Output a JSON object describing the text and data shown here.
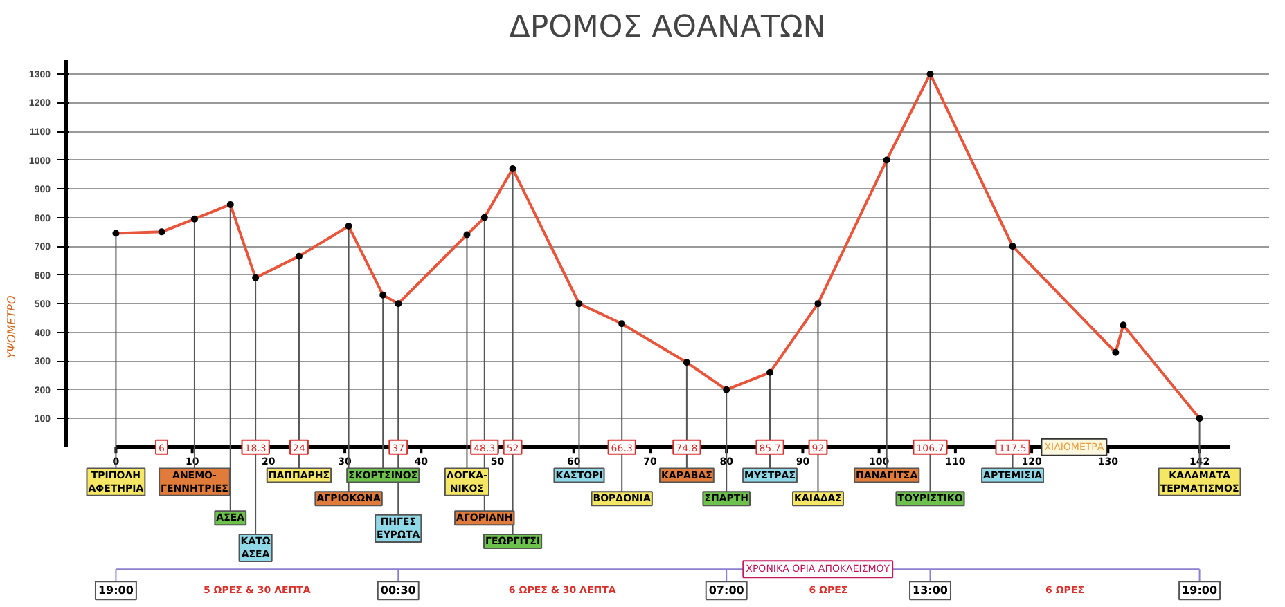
{
  "chart_data": {
    "type": "line",
    "title": "ΔΡΟΜΟΣ ΑΘΑΝΑΤΩΝ",
    "xlabel": "ΧΙΛΙΟΜΕΤΡΑ",
    "ylabel": "ΥΨΟΜΕΤΡΟ",
    "x": [
      0,
      6,
      10.3,
      15,
      18.3,
      24,
      30.5,
      35,
      37,
      46,
      48.3,
      52,
      60.7,
      66.3,
      74.8,
      80,
      85.7,
      92,
      101,
      106.7,
      117.5,
      131,
      132,
      142
    ],
    "series": [
      {
        "color": "#e8553a",
        "values": [
          745,
          750,
          795,
          845,
          590,
          665,
          770,
          530,
          500,
          740,
          800,
          970,
          500,
          430,
          295,
          200,
          260,
          500,
          1000,
          1300,
          700,
          330,
          425,
          100
        ]
      }
    ],
    "marker": "circle",
    "line_style": "solid",
    "grid": "y",
    "xlim": [
      0,
      146
    ],
    "xticks": [
      0,
      10,
      20,
      30,
      40,
      50,
      60,
      70,
      80,
      90,
      100,
      110,
      120,
      130,
      142
    ],
    "ylim": [
      0,
      1350
    ],
    "yticks": [
      100,
      200,
      300,
      400,
      500,
      600,
      700,
      800,
      900,
      1000,
      1100,
      1200,
      1300
    ],
    "annotations": [
      {
        "text": "19:00",
        "x": 0
      },
      {
        "text": "00:30",
        "x": 37
      },
      {
        "text": "07:00",
        "x": 80
      },
      {
        "text": "13:00",
        "x": 106.7
      },
      {
        "text": "19:00",
        "x": 142
      },
      "ΧΡΟΝΙΚΑ ΟΡΙΑ ΑΠΟΚΛΕΙΣΜΟΥ",
      "5 ΩΡΕΣ & 30 ΛΕΠΤΑ",
      "6 ΩΡΕΣ & 30 ΛΕΠΤΑ",
      "6 ΩΡΕΣ",
      "6 ΩΡΕΣ",
      {
        "text": "6",
        "x": 6,
        "y": 0
      },
      {
        "text": "18.3",
        "x": 18.3,
        "y": 0
      },
      {
        "text": "24",
        "x": 24,
        "y": 0
      },
      {
        "text": "37",
        "x": 37,
        "y": 0
      },
      {
        "text": "48.3",
        "x": 48.3,
        "y": 0
      },
      {
        "text": "52",
        "x": 52,
        "y": 0
      },
      {
        "text": "66.3",
        "x": 66.3,
        "y": 0
      },
      {
        "text": "74.8",
        "x": 74.8,
        "y": 0
      },
      {
        "text": "85.7",
        "x": 85.7,
        "y": 0
      },
      {
        "text": "92",
        "x": 92,
        "y": 0
      },
      {
        "text": "106.7",
        "x": 106.7,
        "y": 0
      },
      {
        "text": "117.5",
        "x": 117.5,
        "y": 0
      },
      {
        "text": "ΤΡΙΠΟΛΗ\nΑΦΕΤΗΡΙΑ",
        "x": 0,
        "y": 745
      },
      {
        "text": "ΑΝΕΜΟ-\nΓΕΝΝΗΤΡΙΕΣ",
        "x": 10.3,
        "y": 795
      },
      {
        "text": "ΑΣΕΑ",
        "x": 15,
        "y": 845
      },
      {
        "text": "ΚΑΤΩ\nΑΣΕΑ",
        "x": 18.3,
        "y": 590
      },
      {
        "text": "ΠΑΠΠΑΡΗΣ",
        "x": 24,
        "y": 665
      },
      {
        "text": "ΑΓΡΙΟΚΩΝΑ",
        "x": 30.5,
        "y": 770
      },
      {
        "text": "ΣΚΟΡΤΣΙΝΟΣ",
        "x": 35,
        "y": 530
      },
      {
        "text": "ΠΗΓΕΣ\nΕΥΡΩΤΑ",
        "x": 37,
        "y": 500
      },
      {
        "text": "ΛΟΓΚΑ-\nΝΙΚΟΣ",
        "x": 46,
        "y": 740
      },
      {
        "text": "ΑΓΟΡΙΑΝΗ",
        "x": 48.3,
        "y": 800
      },
      {
        "text": "ΓΕΩΡΓΙΤΣΙ",
        "x": 52,
        "y": 970
      },
      {
        "text": "ΚΑΣΤΟΡΙ",
        "x": 60.7,
        "y": 500
      },
      {
        "text": "ΒΟΡΔΟΝΙΑ",
        "x": 66.3,
        "y": 430
      },
      {
        "text": "ΚΑΡΑΒΑΣ",
        "x": 74.8,
        "y": 295
      },
      {
        "text": "ΣΠΑΡΤΗ",
        "x": 80,
        "y": 200
      },
      {
        "text": "ΜΥΣΤΡΑΣ",
        "x": 85.7,
        "y": 260
      },
      {
        "text": "ΚΑΙΑΔΑΣ",
        "x": 92,
        "y": 500
      },
      {
        "text": "ΠΑΝΑΓΙΤΣΑ",
        "x": 101,
        "y": 1000
      },
      {
        "text": "ΤΟΥΡΙΣΤΙΚΟ",
        "x": 106.7,
        "y": 1300
      },
      {
        "text": "ΑΡΤΕΜΙΣΙΑ",
        "x": 117.5,
        "y": 700
      },
      {
        "text": "ΚΑΛΑΜΑΤΑ\nΤΕΡΜΑΤΙΣΜΟΣ",
        "x": 142,
        "y": 100
      }
    ]
  }
}
